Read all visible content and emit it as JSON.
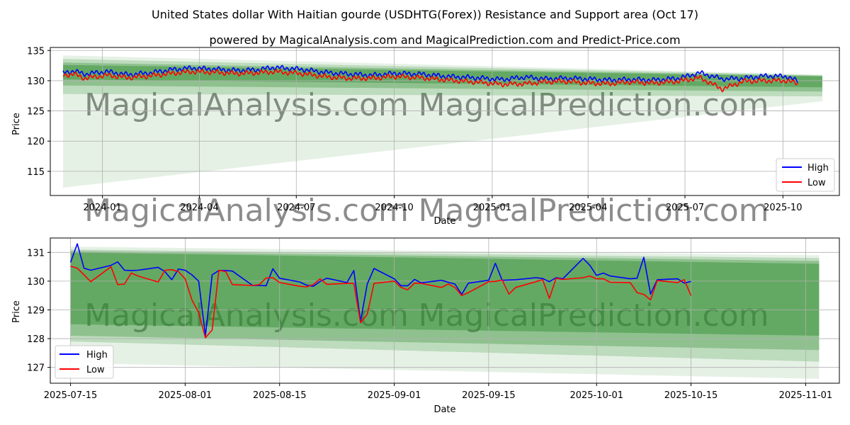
{
  "title": "United States dollar With Haitian gourde (USDHTG(Forex)) Resistance and Support area (Oct 17)",
  "subtitle": "powered by MagicalAnalysis.com and MagicalPrediction.com and Predict-Price.com",
  "watermark": [
    "MagicalAnalysis.com",
    "MagicalPrediction.com"
  ],
  "colors": {
    "high": "#0000ff",
    "low": "#ff0000",
    "band": "#2e8b2e",
    "grid": "#b0b0b0"
  },
  "chart_data": [
    {
      "type": "line",
      "xlabel": "Date",
      "ylabel": "Price",
      "xlim": [
        "2023-11-13",
        "2025-11-23"
      ],
      "ylim": [
        111,
        135.5
      ],
      "x_ticks": [
        {
          "date": "2024-01-01",
          "label": "2024-01"
        },
        {
          "date": "2024-04-01",
          "label": "2024-04"
        },
        {
          "date": "2024-07-01",
          "label": "2024-07"
        },
        {
          "date": "2024-10-01",
          "label": "2024-10"
        },
        {
          "date": "2025-01-01",
          "label": "2025-01"
        },
        {
          "date": "2025-04-01",
          "label": "2025-04"
        },
        {
          "date": "2025-07-01",
          "label": "2025-07"
        },
        {
          "date": "2025-10-01",
          "label": "2025-10"
        }
      ],
      "y_ticks": [
        115,
        120,
        125,
        130,
        135
      ],
      "grid": true,
      "legend": "lower right",
      "band_range": [
        "2023-11-25",
        "2025-11-07"
      ],
      "bands": [
        {
          "top": [
            134.2,
            131.0
          ],
          "bottom": [
            112.3,
            126.6
          ]
        },
        {
          "top": [
            133.6,
            130.9
          ],
          "bottom": [
            127.8,
            127.4
          ]
        },
        {
          "top": [
            133.0,
            130.8
          ],
          "bottom": [
            129.2,
            128.2
          ]
        },
        {
          "top": [
            132.6,
            130.7
          ],
          "bottom": [
            130.2,
            128.9
          ]
        }
      ],
      "series": [
        {
          "name": "High",
          "x": [
            "2023-11-25",
            "2023-12-05",
            "2023-12-15",
            "2024-01-05",
            "2024-01-25",
            "2024-02-15",
            "2024-03-05",
            "2024-03-25",
            "2024-04-15",
            "2024-05-05",
            "2024-05-25",
            "2024-06-10",
            "2024-07-05",
            "2024-08-01",
            "2024-08-20",
            "2024-09-10",
            "2024-10-01",
            "2024-10-25",
            "2024-11-20",
            "2024-12-15",
            "2025-01-10",
            "2025-02-01",
            "2025-02-20",
            "2025-03-10",
            "2025-04-01",
            "2025-04-20",
            "2025-05-10",
            "2025-06-01",
            "2025-06-25",
            "2025-07-15",
            "2025-08-05",
            "2025-08-25",
            "2025-09-15",
            "2025-10-05",
            "2025-10-15"
          ],
          "values": [
            131.3,
            131.6,
            131.1,
            131.5,
            131.0,
            131.3,
            131.8,
            132.1,
            131.9,
            131.7,
            131.8,
            132.2,
            131.9,
            131.3,
            131.1,
            130.9,
            131.2,
            131.1,
            130.7,
            130.5,
            130.2,
            130.6,
            130.3,
            130.4,
            130.3,
            130.1,
            130.2,
            130.1,
            130.4,
            131.3,
            130.3,
            130.4,
            130.8,
            130.7,
            129.9
          ]
        },
        {
          "name": "Low",
          "x": [
            "2023-11-25",
            "2023-12-05",
            "2023-12-15",
            "2024-01-05",
            "2024-01-25",
            "2024-02-15",
            "2024-03-05",
            "2024-03-25",
            "2024-04-15",
            "2024-05-05",
            "2024-05-25",
            "2024-06-10",
            "2024-07-05",
            "2024-08-01",
            "2024-08-20",
            "2024-09-10",
            "2024-10-01",
            "2024-10-25",
            "2024-11-20",
            "2024-12-15",
            "2025-01-10",
            "2025-02-01",
            "2025-02-20",
            "2025-03-10",
            "2025-04-01",
            "2025-04-20",
            "2025-05-10",
            "2025-06-01",
            "2025-06-25",
            "2025-07-15",
            "2025-08-05",
            "2025-08-25",
            "2025-09-15",
            "2025-10-05",
            "2025-10-15"
          ],
          "values": [
            130.9,
            131.1,
            130.4,
            130.9,
            130.5,
            130.8,
            131.2,
            131.5,
            131.4,
            131.2,
            131.3,
            131.5,
            131.2,
            130.6,
            130.4,
            130.4,
            130.7,
            130.5,
            130.1,
            129.8,
            129.4,
            129.5,
            129.8,
            129.9,
            129.6,
            129.5,
            129.8,
            129.6,
            129.9,
            130.5,
            128.6,
            129.9,
            130.0,
            130.0,
            129.5
          ]
        }
      ]
    },
    {
      "type": "line",
      "xlabel": "Date",
      "ylabel": "Price",
      "xlim": [
        "2025-07-12",
        "2025-11-06"
      ],
      "ylim": [
        126.45,
        131.5
      ],
      "x_ticks": [
        {
          "date": "2025-07-15",
          "label": "2025-07-15"
        },
        {
          "date": "2025-08-01",
          "label": "2025-08-01"
        },
        {
          "date": "2025-08-15",
          "label": "2025-08-15"
        },
        {
          "date": "2025-09-01",
          "label": "2025-09-01"
        },
        {
          "date": "2025-09-15",
          "label": "2025-09-15"
        },
        {
          "date": "2025-10-01",
          "label": "2025-10-01"
        },
        {
          "date": "2025-10-15",
          "label": "2025-10-15"
        },
        {
          "date": "2025-11-01",
          "label": "2025-11-01"
        }
      ],
      "y_ticks": [
        127,
        128,
        129,
        130,
        131
      ],
      "grid": true,
      "legend": "lower left",
      "band_range": [
        "2025-07-15",
        "2025-11-03"
      ],
      "bands": [
        {
          "top": [
            131.2,
            130.9
          ],
          "bottom": [
            127.15,
            126.6
          ]
        },
        {
          "top": [
            131.1,
            130.8
          ],
          "bottom": [
            127.9,
            127.2
          ]
        },
        {
          "top": [
            131.05,
            130.7
          ],
          "bottom": [
            128.1,
            127.6
          ]
        },
        {
          "top": [
            131.0,
            130.6
          ],
          "bottom": [
            128.5,
            128.1
          ]
        }
      ],
      "series": [
        {
          "name": "High",
          "x": [
            "2025-07-15",
            "2025-07-16",
            "2025-07-17",
            "2025-07-18",
            "2025-07-21",
            "2025-07-22",
            "2025-07-23",
            "2025-07-24",
            "2025-07-25",
            "2025-07-28",
            "2025-07-29",
            "2025-07-30",
            "2025-07-31",
            "2025-08-01",
            "2025-08-02",
            "2025-08-03",
            "2025-08-04",
            "2025-08-05",
            "2025-08-06",
            "2025-08-07",
            "2025-08-08",
            "2025-08-11",
            "2025-08-12",
            "2025-08-13",
            "2025-08-14",
            "2025-08-15",
            "2025-08-18",
            "2025-08-19",
            "2025-08-20",
            "2025-08-21",
            "2025-08-22",
            "2025-08-25",
            "2025-08-26",
            "2025-08-27",
            "2025-08-28",
            "2025-08-29",
            "2025-09-01",
            "2025-09-02",
            "2025-09-03",
            "2025-09-04",
            "2025-09-05",
            "2025-09-08",
            "2025-09-09",
            "2025-09-10",
            "2025-09-11",
            "2025-09-12",
            "2025-09-15",
            "2025-09-16",
            "2025-09-17",
            "2025-09-18",
            "2025-09-19",
            "2025-09-22",
            "2025-09-23",
            "2025-09-24",
            "2025-09-25",
            "2025-09-26",
            "2025-09-29",
            "2025-09-30",
            "2025-10-01",
            "2025-10-02",
            "2025-10-03",
            "2025-10-06",
            "2025-10-07",
            "2025-10-08",
            "2025-10-09",
            "2025-10-10",
            "2025-10-13",
            "2025-10-14",
            "2025-10-15"
          ],
          "values": [
            130.65,
            131.3,
            130.45,
            130.38,
            130.55,
            130.67,
            130.38,
            130.37,
            130.38,
            130.48,
            130.33,
            130.05,
            130.42,
            130.38,
            130.22,
            130.0,
            128.1,
            130.22,
            130.37,
            130.37,
            130.35,
            129.85,
            129.85,
            129.84,
            130.43,
            130.1,
            129.97,
            129.86,
            129.82,
            129.99,
            130.1,
            129.95,
            130.37,
            128.6,
            129.9,
            130.44,
            130.08,
            129.84,
            129.84,
            130.06,
            129.94,
            130.03,
            129.96,
            129.9,
            129.54,
            129.93,
            130.03,
            130.62,
            130.03,
            130.04,
            130.05,
            130.12,
            130.09,
            129.98,
            130.12,
            130.08,
            130.79,
            130.55,
            130.2,
            130.28,
            130.18,
            130.08,
            130.1,
            130.83,
            129.55,
            130.05,
            130.08,
            129.93,
            129.99
          ]
        },
        {
          "name": "Low",
          "x": [
            "2025-07-15",
            "2025-07-16",
            "2025-07-17",
            "2025-07-18",
            "2025-07-21",
            "2025-07-22",
            "2025-07-23",
            "2025-07-24",
            "2025-07-25",
            "2025-07-28",
            "2025-07-29",
            "2025-07-30",
            "2025-07-31",
            "2025-08-01",
            "2025-08-02",
            "2025-08-03",
            "2025-08-04",
            "2025-08-05",
            "2025-08-06",
            "2025-08-07",
            "2025-08-08",
            "2025-08-11",
            "2025-08-12",
            "2025-08-13",
            "2025-08-14",
            "2025-08-15",
            "2025-08-18",
            "2025-08-19",
            "2025-08-20",
            "2025-08-21",
            "2025-08-22",
            "2025-08-25",
            "2025-08-26",
            "2025-08-27",
            "2025-08-28",
            "2025-08-29",
            "2025-09-01",
            "2025-09-02",
            "2025-09-03",
            "2025-09-04",
            "2025-09-05",
            "2025-09-08",
            "2025-09-09",
            "2025-09-10",
            "2025-09-11",
            "2025-09-12",
            "2025-09-15",
            "2025-09-16",
            "2025-09-17",
            "2025-09-18",
            "2025-09-19",
            "2025-09-22",
            "2025-09-23",
            "2025-09-24",
            "2025-09-25",
            "2025-09-26",
            "2025-09-29",
            "2025-09-30",
            "2025-10-01",
            "2025-10-02",
            "2025-10-03",
            "2025-10-06",
            "2025-10-07",
            "2025-10-08",
            "2025-10-09",
            "2025-10-10",
            "2025-10-13",
            "2025-10-14",
            "2025-10-15"
          ],
          "values": [
            130.52,
            130.45,
            130.22,
            129.98,
            130.5,
            129.88,
            129.9,
            130.28,
            130.18,
            129.97,
            130.38,
            130.4,
            130.33,
            130.08,
            129.35,
            128.9,
            128.03,
            128.3,
            130.38,
            130.33,
            129.88,
            129.85,
            129.88,
            130.11,
            130.12,
            129.95,
            129.82,
            129.8,
            129.88,
            130.08,
            129.89,
            129.92,
            129.92,
            128.55,
            128.85,
            129.92,
            130.0,
            129.78,
            129.7,
            129.93,
            129.92,
            129.78,
            129.9,
            129.78,
            129.5,
            129.6,
            129.98,
            129.99,
            130.04,
            129.55,
            129.78,
            129.98,
            130.05,
            129.4,
            130.1,
            130.06,
            130.12,
            130.18,
            130.08,
            130.08,
            129.96,
            129.95,
            129.6,
            129.54,
            129.35,
            130.02,
            129.95,
            130.05,
            129.5
          ]
        }
      ]
    }
  ]
}
